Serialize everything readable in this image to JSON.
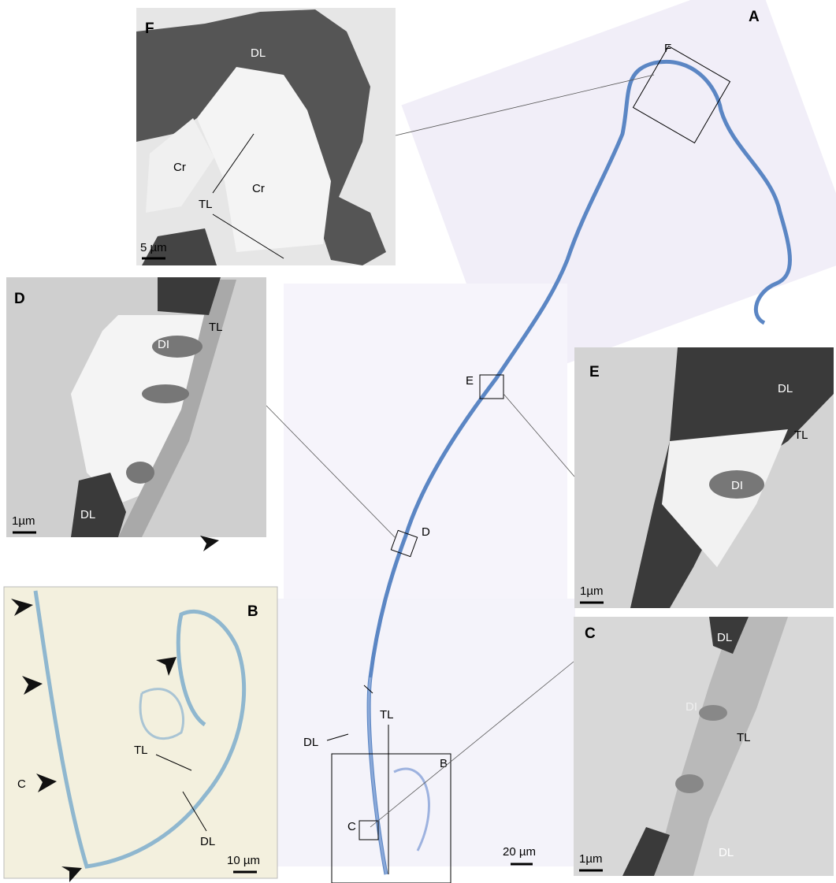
{
  "panels": {
    "A": {
      "label": "A",
      "boxes": [
        "F",
        "E",
        "D",
        "C",
        "B"
      ],
      "annotations": [
        "TL",
        "DL"
      ],
      "scale_bar": "20 µm"
    },
    "B": {
      "label": "B",
      "annotations": [
        "C",
        "TL",
        "DL"
      ],
      "scale_bar": "10 µm"
    },
    "C": {
      "label": "C",
      "annotations": [
        "DL",
        "DI",
        "TL",
        "DL"
      ],
      "scale_bar": "1µm"
    },
    "D": {
      "label": "D",
      "annotations": [
        "DI",
        "TL",
        "DL"
      ],
      "scale_bar": "1µm"
    },
    "E": {
      "label": "E",
      "annotations": [
        "DL",
        "TL",
        "DI"
      ],
      "scale_bar": "1µm"
    },
    "F": {
      "label": "F",
      "annotations": [
        "DL",
        "Cr",
        "Cr",
        "TL"
      ],
      "scale_bar": "5 µm"
    }
  }
}
